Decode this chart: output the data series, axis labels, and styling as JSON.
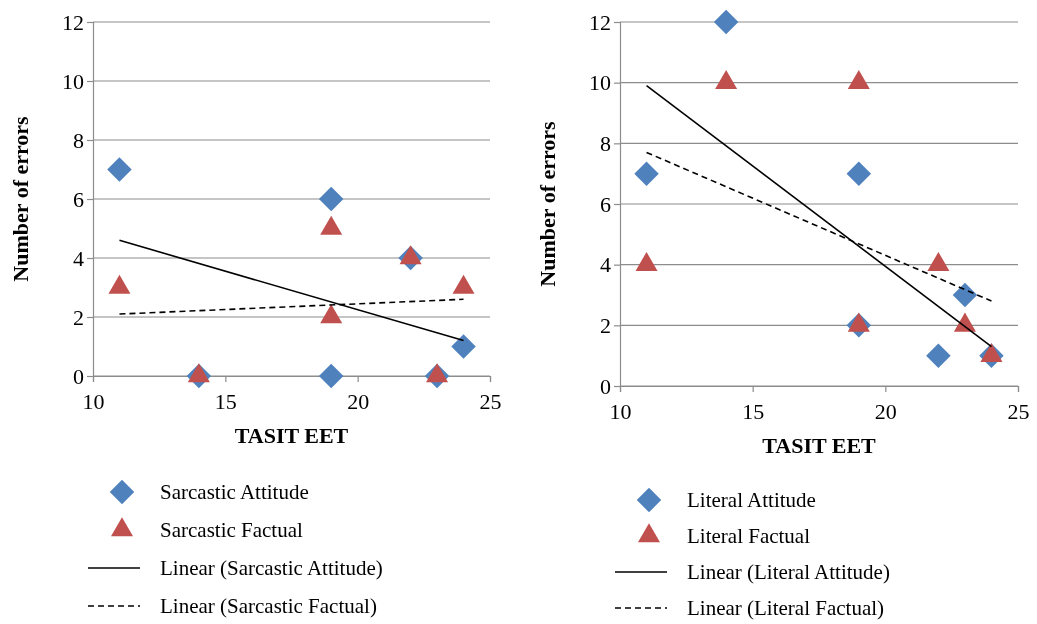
{
  "chart_data": [
    {
      "type": "scatter",
      "xlabel": "TASIT EET",
      "ylabel": "Number of errors",
      "xlim": [
        10,
        25
      ],
      "xticks": [
        10,
        15,
        20,
        25
      ],
      "ylim": [
        0,
        12
      ],
      "yticks": [
        0,
        2,
        4,
        6,
        8,
        10,
        12
      ],
      "grid": "y",
      "legend": "bottom",
      "series": [
        {
          "name": "Sarcastic Attitude",
          "type": "scatter",
          "marker": "diamond",
          "color": "#4f81bd",
          "x": [
            11,
            14,
            19,
            19,
            22,
            23,
            24
          ],
          "values": [
            7,
            0,
            6,
            0,
            4,
            0,
            1
          ]
        },
        {
          "name": "Sarcastic Factual",
          "type": "scatter",
          "marker": "triangle",
          "color": "#c0504d",
          "x": [
            11,
            14,
            19,
            19,
            22,
            23,
            24
          ],
          "values": [
            3,
            0,
            5,
            2,
            4,
            0,
            3
          ]
        },
        {
          "name": "Linear (Sarcastic Attitude)",
          "type": "line",
          "marker": "none",
          "line_style": "solid",
          "color": "#000000",
          "x": [
            11,
            24
          ],
          "values": [
            4.6,
            1.2
          ]
        },
        {
          "name": "Linear (Sarcastic Factual)",
          "type": "line",
          "marker": "none",
          "line_style": "dashed",
          "color": "#000000",
          "x": [
            11,
            24
          ],
          "values": [
            2.1,
            2.6
          ]
        }
      ]
    },
    {
      "type": "scatter",
      "xlabel": "TASIT EET",
      "ylabel": "Number of errors",
      "xlim": [
        10,
        25
      ],
      "xticks": [
        10,
        15,
        20,
        25
      ],
      "ylim": [
        0,
        12
      ],
      "yticks": [
        0,
        2,
        4,
        6,
        8,
        10,
        12
      ],
      "grid": "y",
      "legend": "bottom",
      "series": [
        {
          "name": "Literal Attitude",
          "type": "scatter",
          "marker": "diamond",
          "color": "#4f81bd",
          "x": [
            11,
            14,
            19,
            19,
            22,
            23,
            24
          ],
          "values": [
            7,
            12,
            7,
            2,
            1,
            3,
            1
          ]
        },
        {
          "name": "Literal Factual",
          "type": "scatter",
          "marker": "triangle",
          "color": "#c0504d",
          "x": [
            11,
            14,
            19,
            19,
            22,
            23,
            24
          ],
          "values": [
            4,
            10,
            10,
            2,
            4,
            2,
            1
          ]
        },
        {
          "name": "Linear (Literal Attitude)",
          "type": "line",
          "marker": "none",
          "line_style": "solid",
          "color": "#000000",
          "x": [
            11,
            24
          ],
          "values": [
            9.9,
            1.3
          ]
        },
        {
          "name": "Linear (Literal Factual)",
          "type": "line",
          "marker": "none",
          "line_style": "dashed",
          "color": "#000000",
          "x": [
            11,
            24
          ],
          "values": [
            7.7,
            2.8
          ]
        }
      ]
    }
  ]
}
